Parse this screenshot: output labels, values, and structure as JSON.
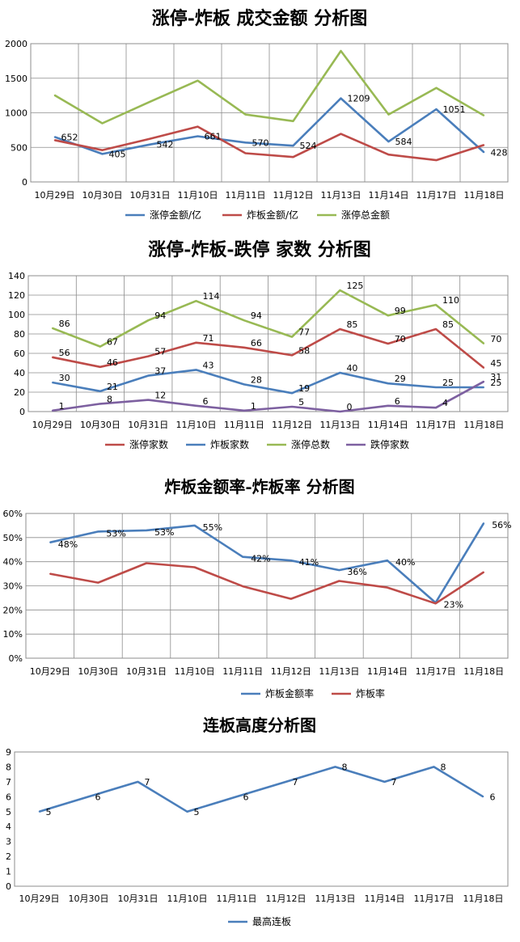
{
  "chart_data": [
    {
      "type": "line",
      "title": "涨停-炸板 成交金额 分析图",
      "categories": [
        "10月29日",
        "10月30日",
        "10月31日",
        "11月10日",
        "11月11日",
        "11月12日",
        "11月13日",
        "11月14日",
        "11月17日",
        "11月18日"
      ],
      "ylim": [
        0,
        2000
      ],
      "yticks": [
        0,
        500,
        1000,
        1500,
        2000
      ],
      "grid": true,
      "legend": "bottom",
      "series": [
        {
          "name": "涨停金额/亿",
          "color": "#4a7ebb",
          "values": [
            652,
            405,
            542,
            661,
            570,
            524,
            1209,
            584,
            1051,
            428
          ],
          "labels": [
            "652",
            "405",
            "542",
            "661",
            "570",
            "524",
            "1209",
            "584",
            "1051",
            "428"
          ]
        },
        {
          "name": "炸板金额/亿",
          "color": "#be4b48",
          "values": [
            605,
            460,
            625,
            800,
            415,
            360,
            695,
            395,
            315,
            535
          ]
        },
        {
          "name": "涨停总金额",
          "color": "#98b954",
          "values": [
            1255,
            848,
            1160,
            1465,
            975,
            880,
            1895,
            975,
            1360,
            960
          ]
        }
      ]
    },
    {
      "type": "line",
      "title": "涨停-炸板-跌停 家数 分析图",
      "categories": [
        "10月29日",
        "10月30日",
        "10月31日",
        "11月10日",
        "11月11日",
        "11月12日",
        "11月13日",
        "11月14日",
        "11月17日",
        "11月18日"
      ],
      "ylim": [
        0,
        140
      ],
      "yticks": [
        0,
        20,
        40,
        60,
        80,
        100,
        120,
        140
      ],
      "grid": true,
      "legend": "bottom",
      "series": [
        {
          "name": "涨停家数",
          "color": "#be4b48",
          "values": [
            56,
            46,
            57,
            71,
            66,
            58,
            85,
            70,
            85,
            45
          ],
          "labels": [
            "56",
            "46",
            "57",
            "71",
            "66",
            "58",
            "85",
            "70",
            "85",
            "45"
          ]
        },
        {
          "name": "炸板家数",
          "color": "#4a7ebb",
          "values": [
            30,
            21,
            37,
            43,
            28,
            19,
            40,
            29,
            25,
            25
          ],
          "labels": [
            "30",
            "21",
            "37",
            "43",
            "28",
            "19",
            "40",
            "29",
            "25",
            "25"
          ]
        },
        {
          "name": "涨停总数",
          "color": "#98b954",
          "values": [
            86,
            67,
            94,
            114,
            94,
            77,
            125,
            99,
            110,
            70
          ],
          "labels": [
            "86",
            "67",
            "94",
            "114",
            "94",
            "77",
            "125",
            "99",
            "110",
            "70"
          ]
        },
        {
          "name": "跌停家数",
          "color": "#7d60a0",
          "values": [
            1,
            8,
            12,
            6,
            1,
            5,
            0,
            6,
            4,
            31
          ],
          "labels": [
            "1",
            "8",
            "12",
            "6",
            "1",
            "5",
            "0",
            "6",
            "4",
            "31"
          ]
        }
      ]
    },
    {
      "type": "line",
      "title": "炸板金额率-炸板率 分析图",
      "categories": [
        "10月29日",
        "10月30日",
        "10月31日",
        "11月10日",
        "11月11日",
        "11月12日",
        "11月13日",
        "11月14日",
        "11月17日",
        "11月18日"
      ],
      "ylim": [
        0,
        60
      ],
      "yticks": [
        0,
        10,
        20,
        30,
        40,
        50,
        60
      ],
      "ytick_labels": [
        "0%",
        "10%",
        "20%",
        "30%",
        "40%",
        "50%",
        "60%"
      ],
      "grid": true,
      "legend": "bottom",
      "series": [
        {
          "name": "炸板金额率",
          "color": "#4a7ebb",
          "values": [
            48,
            52.5,
            53,
            55,
            42,
            40.5,
            36.5,
            40.5,
            23,
            56
          ],
          "labels": [
            "48%",
            "53%",
            "53%",
            "55%",
            "42%",
            "41%",
            "36%",
            "40%",
            "23%",
            "56%"
          ]
        },
        {
          "name": "炸板率",
          "color": "#be4b48",
          "values": [
            35,
            31.3,
            39.4,
            37.7,
            29.8,
            24.6,
            32,
            29.3,
            22.7,
            35.7
          ]
        }
      ]
    },
    {
      "type": "line",
      "title": "连板高度分析图",
      "categories": [
        "10月29日",
        "10月30日",
        "10月31日",
        "11月10日",
        "11月11日",
        "11月12日",
        "11月13日",
        "11月14日",
        "11月17日",
        "11月18日"
      ],
      "ylim": [
        0,
        9
      ],
      "yticks": [
        0,
        1,
        2,
        3,
        4,
        5,
        6,
        7,
        8,
        9
      ],
      "grid": false,
      "legend": "bottom",
      "series": [
        {
          "name": "最高连板",
          "color": "#4a7ebb",
          "values": [
            5,
            6,
            7,
            5,
            6,
            7,
            8,
            7,
            8,
            6
          ],
          "labels": [
            "5",
            "6",
            "7",
            "5",
            "6",
            "7",
            "8",
            "7",
            "8",
            "6"
          ]
        }
      ]
    }
  ]
}
